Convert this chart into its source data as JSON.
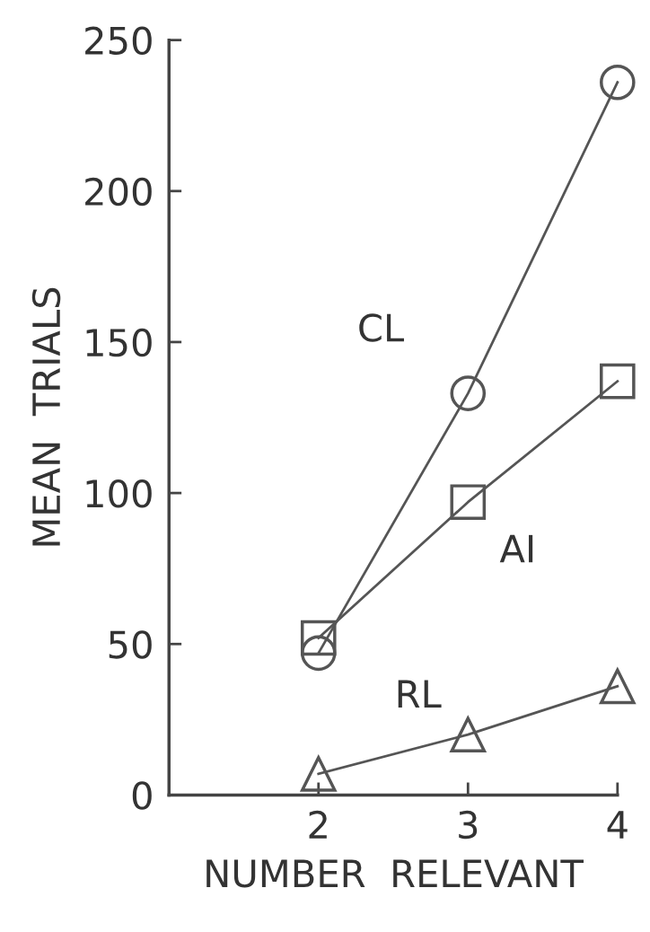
{
  "chart_data": {
    "type": "line",
    "xlabel": "NUMBER  RELEVANT",
    "ylabel": "MEAN  TRIALS",
    "x": [
      2,
      3,
      4
    ],
    "xlim": [
      1,
      4
    ],
    "xticks": [
      2,
      3,
      4
    ],
    "ylim": [
      0,
      250
    ],
    "yticks": [
      0,
      50,
      100,
      150,
      200,
      250
    ],
    "grid": false,
    "legend": false,
    "series": [
      {
        "name": "CL",
        "color": "#555555",
        "marker": "circle",
        "values": [
          47,
          133,
          236
        ]
      },
      {
        "name": "AI",
        "color": "#555555",
        "marker": "square",
        "values": [
          52,
          97,
          137
        ]
      },
      {
        "name": "RL",
        "color": "#555555",
        "marker": "triangle",
        "values": [
          7,
          20,
          36
        ]
      }
    ]
  }
}
